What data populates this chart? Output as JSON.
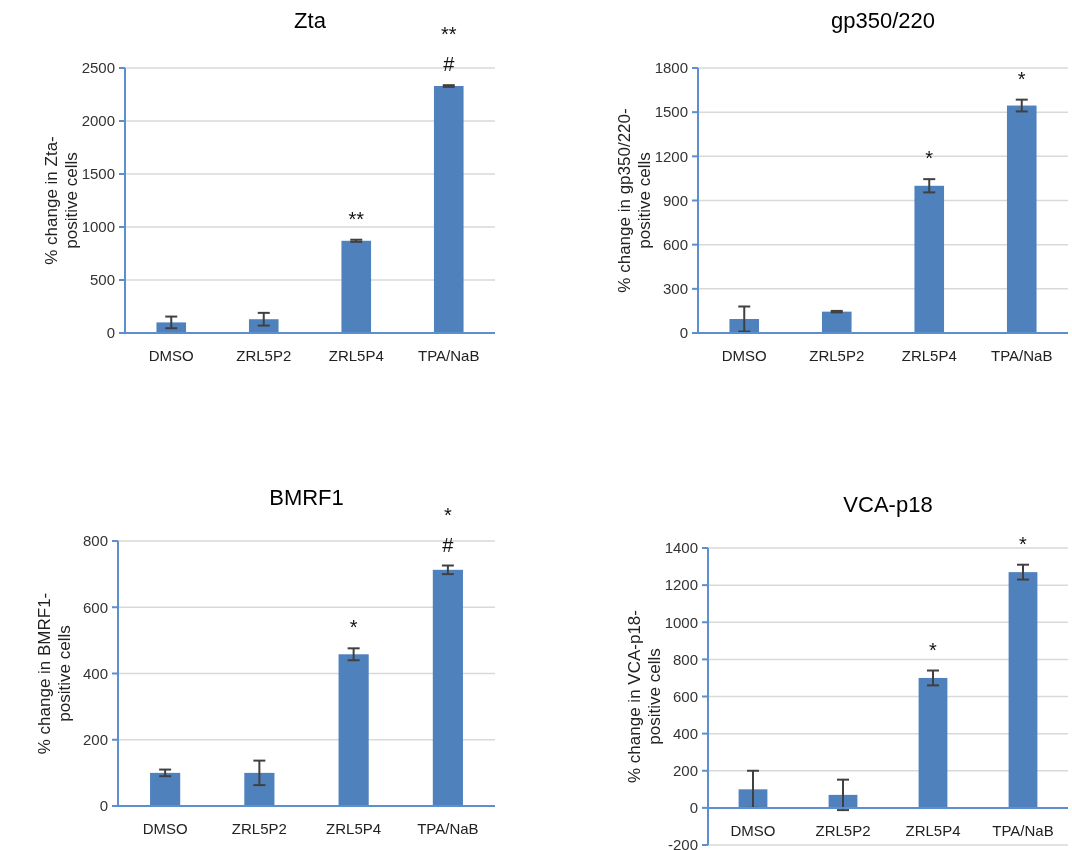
{
  "chart_data": [
    {
      "type": "bar",
      "title": "Zta",
      "ylabel": "% change in Zta-positive cells",
      "categories": [
        "DMSO",
        "ZRL5P2",
        "ZRL5P4",
        "TPA/NaB"
      ],
      "values": [
        100,
        130,
        870,
        2330
      ],
      "errors": [
        55,
        60,
        10,
        8
      ],
      "color": "#4f81bd",
      "ylim": [
        0,
        2500
      ],
      "yticks": [
        0,
        500,
        1000,
        1500,
        2000,
        2500
      ],
      "grid": "y",
      "annotations": [
        {
          "text": "**",
          "x": "ZRL5P4",
          "y": 880
        },
        {
          "text": "#",
          "x": "TPA/NaB",
          "y": 2338
        },
        {
          "text": "**",
          "x": "TPA/NaB",
          "y": 2338
        }
      ]
    },
    {
      "type": "bar",
      "title": "gp350/220",
      "ylabel": "% change in gp350/220-positive cells",
      "categories": [
        "DMSO",
        "ZRL5P2",
        "ZRL5P4",
        "TPA/NaB"
      ],
      "values": [
        95,
        145,
        1000,
        1545
      ],
      "errors": [
        85,
        5,
        45,
        40
      ],
      "color": "#4f81bd",
      "ylim": [
        0,
        1800
      ],
      "yticks": [
        0,
        300,
        600,
        900,
        1200,
        1500,
        1800
      ],
      "grid": "y",
      "annotations": [
        {
          "text": "*",
          "x": "ZRL5P4",
          "y": 1045
        },
        {
          "text": "*",
          "x": "TPA/NaB",
          "y": 1585
        }
      ]
    },
    {
      "type": "bar",
      "title": "BMRF1",
      "ylabel": "% change in BMRF1-positive cells",
      "categories": [
        "DMSO",
        "ZRL5P2",
        "ZRL5P4",
        "TPA/NaB"
      ],
      "values": [
        100,
        100,
        458,
        713
      ],
      "errors": [
        10,
        37,
        18,
        13
      ],
      "color": "#4f81bd",
      "ylim": [
        0,
        800
      ],
      "yticks": [
        0,
        200,
        400,
        600,
        800
      ],
      "grid": "y",
      "annotations": [
        {
          "text": "*",
          "x": "ZRL5P4",
          "y": 476
        },
        {
          "text": "#",
          "x": "TPA/NaB",
          "y": 726
        },
        {
          "text": "*",
          "x": "TPA/NaB",
          "y": 726
        }
      ]
    },
    {
      "type": "bar",
      "title": "VCA-p18",
      "ylabel": "% change in VCA-p18-positive cells",
      "categories": [
        "DMSO",
        "ZRL5P2",
        "ZRL5P4",
        "TPA/NaB"
      ],
      "values": [
        100,
        70,
        700,
        1270
      ],
      "errors": [
        100,
        82,
        40,
        40
      ],
      "color": "#4f81bd",
      "ylim": [
        -200,
        1400
      ],
      "yticks": [
        -200,
        0,
        200,
        400,
        600,
        800,
        1000,
        1200,
        1400
      ],
      "grid": "y",
      "ref_lines": [
        {
          "axis": "y",
          "value": 0,
          "color": "#5b8fd0"
        }
      ],
      "annotations": [
        {
          "text": "*",
          "x": "ZRL5P4",
          "y": 740
        },
        {
          "text": "*",
          "x": "TPA/NaB",
          "y": 1310
        }
      ]
    }
  ]
}
